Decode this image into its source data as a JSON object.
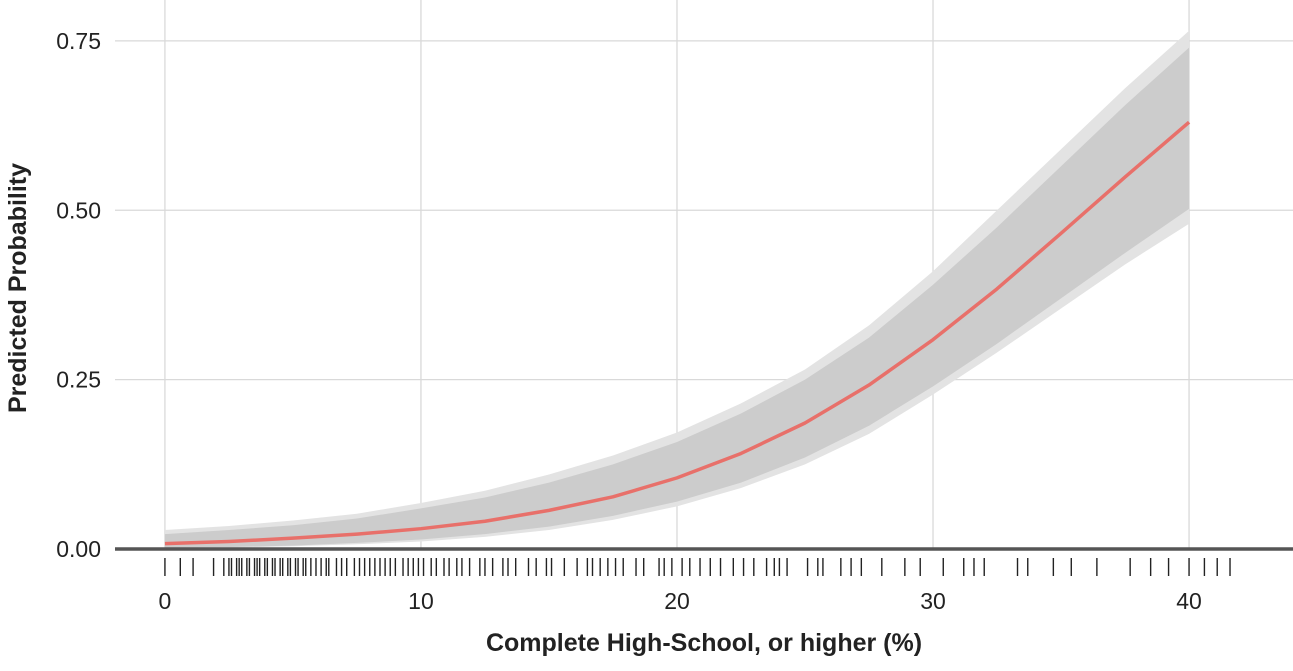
{
  "chart_data": {
    "type": "line",
    "x_label": "Complete High-School, or higher (%)",
    "y_label": "Predicted Probability",
    "x": [
      0,
      2.5,
      5,
      7.5,
      10,
      12.5,
      15,
      17.5,
      20,
      22.5,
      25,
      27.5,
      30,
      32.5,
      35,
      37.5,
      40
    ],
    "series": [
      {
        "color": "#e8706a",
        "values": [
          0.008,
          0.011,
          0.016,
          0.022,
          0.03,
          0.041,
          0.057,
          0.077,
          0.105,
          0.141,
          0.186,
          0.242,
          0.309,
          0.384,
          0.466,
          0.549,
          0.63
        ]
      }
    ],
    "bands": [
      {
        "color": "#e3e3e3",
        "lower": [
          0.001,
          0.002,
          0.004,
          0.007,
          0.011,
          0.018,
          0.028,
          0.043,
          0.063,
          0.09,
          0.125,
          0.17,
          0.228,
          0.29,
          0.355,
          0.42,
          0.48
        ],
        "upper": [
          0.028,
          0.034,
          0.042,
          0.052,
          0.068,
          0.086,
          0.11,
          0.138,
          0.172,
          0.215,
          0.265,
          0.33,
          0.41,
          0.5,
          0.59,
          0.68,
          0.765
        ]
      },
      {
        "color": "#cccccc",
        "lower": [
          0.002,
          0.003,
          0.005,
          0.009,
          0.014,
          0.022,
          0.033,
          0.049,
          0.07,
          0.098,
          0.135,
          0.182,
          0.24,
          0.303,
          0.37,
          0.437,
          0.502
        ],
        "upper": [
          0.022,
          0.028,
          0.035,
          0.045,
          0.06,
          0.076,
          0.098,
          0.125,
          0.158,
          0.2,
          0.25,
          0.312,
          0.39,
          0.475,
          0.565,
          0.655,
          0.74
        ]
      }
    ],
    "rug": [
      0,
      0.6,
      1.1,
      1.9,
      2.3,
      2.5,
      2.6,
      2.8,
      2.9,
      3.0,
      3.2,
      3.3,
      3.5,
      3.6,
      3.7,
      3.9,
      4.0,
      4.2,
      4.3,
      4.5,
      4.6,
      4.8,
      4.9,
      5.1,
      5.2,
      5.4,
      5.5,
      5.7,
      5.9,
      6.1,
      6.3,
      6.4,
      6.7,
      6.9,
      7.1,
      7.4,
      7.6,
      7.8,
      8.0,
      8.2,
      8.4,
      8.6,
      8.8,
      9.0,
      9.3,
      9.5,
      9.7,
      9.9,
      10.1,
      10.4,
      10.6,
      10.9,
      11.1,
      11.4,
      11.6,
      11.9,
      12.3,
      12.5,
      12.8,
      13.2,
      13.4,
      13.7,
      14.2,
      14.5,
      14.9,
      15.1,
      15.6,
      16.1,
      16.5,
      16.7,
      17.0,
      17.3,
      17.6,
      17.9,
      18.4,
      18.7,
      19.3,
      19.5,
      19.8,
      20.2,
      20.5,
      20.9,
      21.3,
      21.7,
      22.2,
      22.6,
      23.0,
      23.5,
      23.8,
      24.0,
      24.3,
      25.1,
      25.5,
      25.7,
      26.4,
      26.8,
      27.2,
      28.0,
      28.9,
      29.5,
      30.4,
      31.2,
      31.6,
      32.0,
      33.3,
      33.7,
      34.7,
      35.4,
      36.4,
      37.7,
      38.5,
      39.2,
      40.0,
      40.6,
      41.1,
      41.6
    ],
    "xlim": [
      -1.95,
      44.06
    ],
    "ylim": [
      -0.045,
      0.8
    ],
    "xticks": [
      0,
      10,
      20,
      30,
      40
    ],
    "yticks": [
      {
        "value": 0,
        "label": "0.00"
      },
      0.25,
      {
        "value": 0.5,
        "label": "0.50"
      },
      0.75
    ],
    "grid": true
  }
}
